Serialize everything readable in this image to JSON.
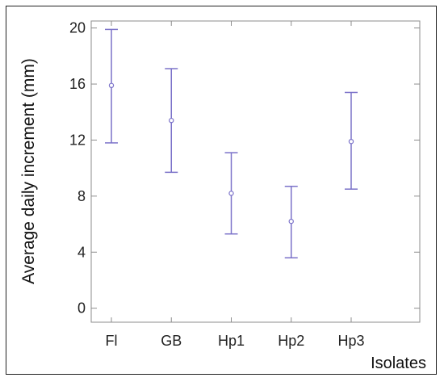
{
  "chart_data": {
    "type": "scatter",
    "title": "",
    "xlabel": "Isolates",
    "ylabel": "Average daily increment (mm)",
    "categories": [
      "Fl",
      "GB",
      "Hp1",
      "Hp2",
      "Hp3"
    ],
    "series": [
      {
        "mean": [
          15.9,
          13.4,
          8.2,
          6.2,
          11.9
        ],
        "lower": [
          11.8,
          9.7,
          5.3,
          3.6,
          8.5
        ],
        "upper": [
          19.9,
          17.1,
          11.1,
          8.7,
          15.4
        ]
      }
    ],
    "ylim": [
      -1,
      20.5
    ],
    "yticks": [
      0,
      4,
      8,
      12,
      16,
      20
    ],
    "ytick_labels": [
      "0",
      "4",
      "8",
      "12",
      "16",
      "20"
    ],
    "error_bars": true,
    "grid": false,
    "marker_color": "#7b72c9"
  }
}
